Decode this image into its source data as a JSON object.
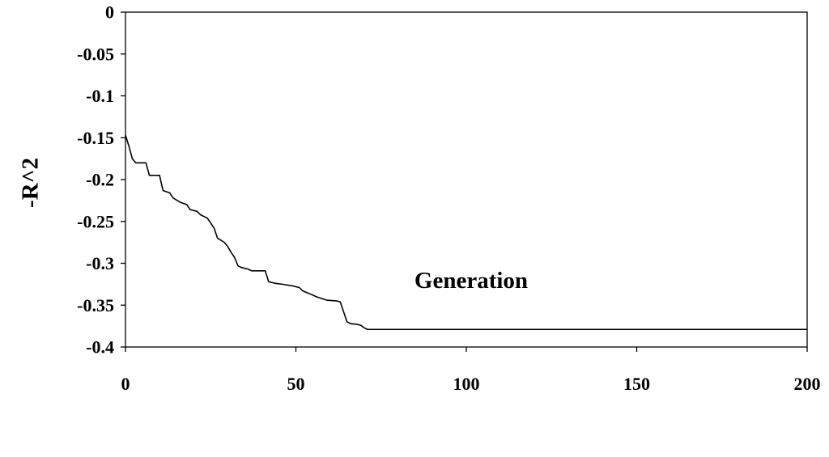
{
  "chart_data": {
    "type": "line",
    "title": "",
    "xlabel": "Generation",
    "ylabel": "-R^2",
    "xlim": [
      0,
      200
    ],
    "ylim": [
      -0.4,
      0
    ],
    "x_ticks": [
      0,
      50,
      100,
      150,
      200
    ],
    "x_tick_labels": [
      "0",
      "50",
      "100",
      "150",
      "200"
    ],
    "y_ticks": [
      0,
      -0.05,
      -0.1,
      -0.15,
      -0.2,
      -0.25,
      -0.3,
      -0.35,
      -0.4
    ],
    "y_tick_labels": [
      "0",
      "-0.05",
      "-0.1",
      "-0.15",
      "-0.2",
      "-0.25",
      "-0.3",
      "-0.35",
      "-0.4"
    ],
    "grid": false,
    "legend": "none",
    "line_color": "#000000",
    "series": [
      {
        "x": [
          0,
          1,
          2,
          3,
          6,
          7,
          10,
          11,
          13,
          14,
          16,
          18,
          19,
          21,
          22,
          24,
          25,
          26,
          27,
          29,
          30,
          31,
          32,
          33,
          34,
          36,
          37,
          41,
          42,
          44,
          46,
          49,
          51,
          52,
          55,
          56,
          59,
          62,
          63,
          64,
          65,
          66,
          68,
          69,
          70,
          71,
          200
        ],
        "y": [
          -0.147,
          -0.16,
          -0.175,
          -0.18,
          -0.18,
          -0.195,
          -0.195,
          -0.213,
          -0.216,
          -0.222,
          -0.227,
          -0.23,
          -0.236,
          -0.238,
          -0.242,
          -0.246,
          -0.252,
          -0.258,
          -0.27,
          -0.275,
          -0.28,
          -0.287,
          -0.293,
          -0.303,
          -0.305,
          -0.307,
          -0.309,
          -0.309,
          -0.322,
          -0.324,
          -0.325,
          -0.327,
          -0.329,
          -0.333,
          -0.338,
          -0.34,
          -0.344,
          -0.345,
          -0.346,
          -0.358,
          -0.37,
          -0.372,
          -0.373,
          -0.374,
          -0.377,
          -0.379,
          -0.379
        ]
      }
    ]
  }
}
